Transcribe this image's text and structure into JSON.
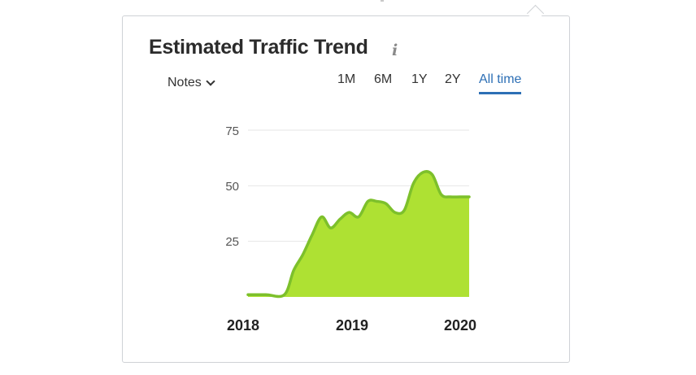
{
  "widget": {
    "title": "Estimated Traffic Trend",
    "info_icon": "info-icon",
    "notes_label": "Notes",
    "notes_icon": "chevron-down-icon"
  },
  "range_tabs": [
    {
      "label": "1M",
      "active": false
    },
    {
      "label": "6M",
      "active": false
    },
    {
      "label": "1Y",
      "active": false
    },
    {
      "label": "2Y",
      "active": false
    },
    {
      "label": "All time",
      "active": true
    }
  ],
  "colors": {
    "fill": "#aee133",
    "line": "#7dc02b",
    "grid": "#e6e6e6",
    "active_tab": "#2d6fb5"
  },
  "chart_data": {
    "type": "area",
    "title": "",
    "xlabel": "",
    "ylabel": "",
    "ylim": [
      0,
      75
    ],
    "y_ticks": [
      "75",
      "50",
      "25"
    ],
    "x_ticks": [
      "2018",
      "2019",
      "2020"
    ],
    "grid": true,
    "x": [
      "2018-01",
      "2018-03",
      "2018-05",
      "2018-06",
      "2018-07",
      "2018-08",
      "2018-09",
      "2018-10",
      "2018-11",
      "2018-12",
      "2019-01",
      "2019-02",
      "2019-03",
      "2019-04",
      "2019-05",
      "2019-06",
      "2019-07",
      "2019-08",
      "2019-09",
      "2019-10",
      "2019-11",
      "2019-12",
      "2020-01"
    ],
    "values": [
      1,
      1,
      1,
      12,
      19,
      28,
      36,
      31,
      35,
      38,
      36,
      43,
      43,
      42,
      38,
      39,
      51,
      56,
      55,
      46,
      45,
      45,
      45
    ]
  }
}
